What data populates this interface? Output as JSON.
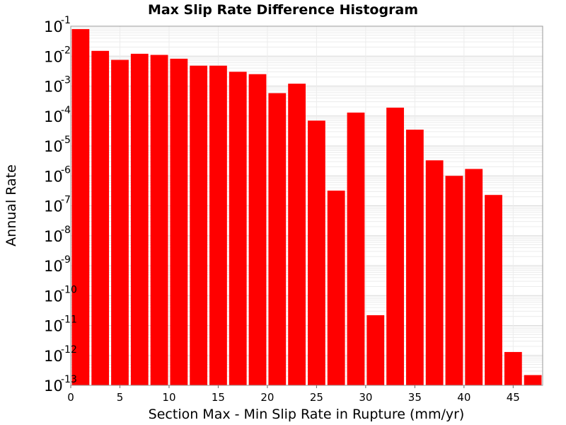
{
  "chart_data": {
    "type": "bar",
    "title": "Max Slip Rate Difference Histogram",
    "xlabel": "Section Max - Min Slip Rate in Rupture (mm/yr)",
    "ylabel": "Annual Rate",
    "yscale": "log",
    "ylim": [
      1e-13,
      0.1
    ],
    "xlim": [
      0,
      48
    ],
    "bin_width": 2,
    "bar_color": "#ff0000",
    "grid": true,
    "x_ticks": [
      "0",
      "5",
      "10",
      "15",
      "20",
      "25",
      "30",
      "35",
      "40",
      "45"
    ],
    "y_ticks": [
      {
        "base": "10",
        "exp": "-1"
      },
      {
        "base": "10",
        "exp": "-2"
      },
      {
        "base": "10",
        "exp": "-3"
      },
      {
        "base": "10",
        "exp": "-4"
      },
      {
        "base": "10",
        "exp": "-5"
      },
      {
        "base": "10",
        "exp": "-6"
      },
      {
        "base": "10",
        "exp": "-7"
      },
      {
        "base": "10",
        "exp": "-8"
      },
      {
        "base": "10",
        "exp": "-9"
      },
      {
        "base": "10",
        "exp": "-10"
      },
      {
        "base": "10",
        "exp": "-11"
      },
      {
        "base": "10",
        "exp": "-12"
      },
      {
        "base": "10",
        "exp": "-13"
      }
    ],
    "bins": [
      {
        "x": 1,
        "value": 0.08
      },
      {
        "x": 3,
        "value": 0.015
      },
      {
        "x": 5,
        "value": 0.0075
      },
      {
        "x": 7,
        "value": 0.012
      },
      {
        "x": 9,
        "value": 0.011
      },
      {
        "x": 11,
        "value": 0.0082
      },
      {
        "x": 13,
        "value": 0.0048
      },
      {
        "x": 15,
        "value": 0.0048
      },
      {
        "x": 17,
        "value": 0.003
      },
      {
        "x": 19,
        "value": 0.0025
      },
      {
        "x": 21,
        "value": 0.00058
      },
      {
        "x": 23,
        "value": 0.0012
      },
      {
        "x": 25,
        "value": 7e-05
      },
      {
        "x": 27,
        "value": 3.2e-07
      },
      {
        "x": 29,
        "value": 0.00013
      },
      {
        "x": 31,
        "value": 2.2e-11
      },
      {
        "x": 33,
        "value": 0.00019
      },
      {
        "x": 35,
        "value": 3.5e-05
      },
      {
        "x": 37,
        "value": 3.3e-06
      },
      {
        "x": 39,
        "value": 1e-06
      },
      {
        "x": 41,
        "value": 1.7e-06
      },
      {
        "x": 43,
        "value": 2.3e-07
      },
      {
        "x": 45,
        "value": 1.3e-12
      },
      {
        "x": 47,
        "value": 2.2e-13
      }
    ]
  }
}
